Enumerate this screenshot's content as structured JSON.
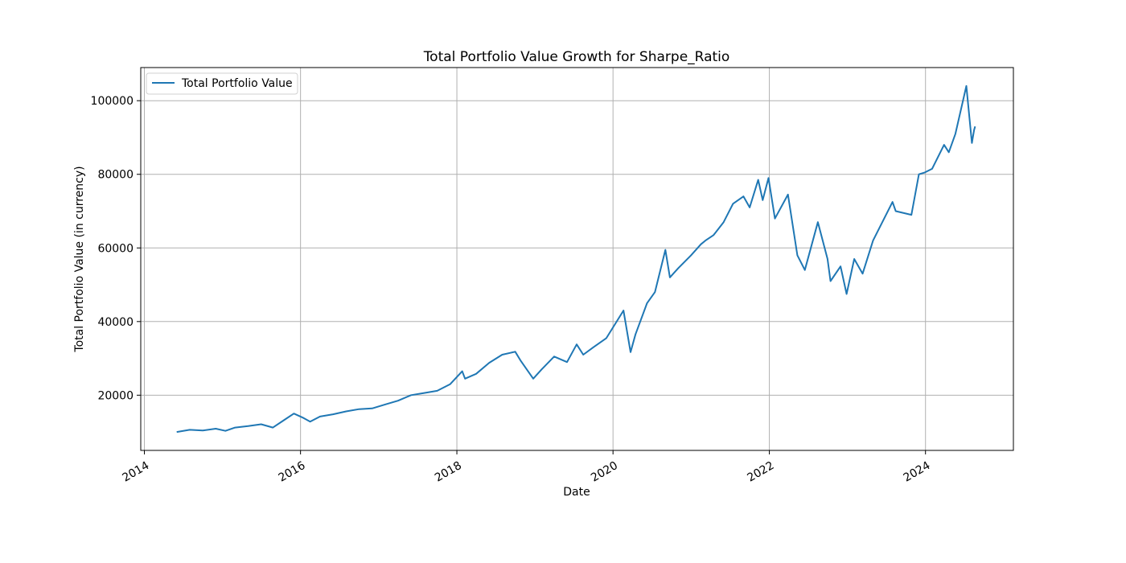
{
  "chart_data": {
    "type": "line",
    "title": "Total Portfolio Value Growth for Sharpe_Ratio",
    "xlabel": "Date",
    "ylabel": "Total Portfolio Value (in currency)",
    "xlim": [
      "2013-12-15",
      "2025-02-15"
    ],
    "ylim": [
      5000,
      109000
    ],
    "x_ticks": [
      "2014",
      "2016",
      "2018",
      "2020",
      "2022",
      "2024"
    ],
    "x_tick_dates": [
      "2014-01-01",
      "2016-01-01",
      "2018-01-01",
      "2020-01-01",
      "2022-01-01",
      "2024-01-01"
    ],
    "y_ticks": [
      20000,
      40000,
      60000,
      80000,
      100000
    ],
    "grid": true,
    "legend_position": "upper-left",
    "line_color": "#1f77b4",
    "series": [
      {
        "name": "Total Portfolio Value",
        "x": [
          "2014-06-01",
          "2014-08-01",
          "2014-10-01",
          "2014-12-01",
          "2015-01-15",
          "2015-03-01",
          "2015-05-01",
          "2015-07-01",
          "2015-08-25",
          "2015-10-15",
          "2015-12-01",
          "2016-01-15",
          "2016-02-15",
          "2016-04-01",
          "2016-06-01",
          "2016-08-01",
          "2016-10-01",
          "2016-12-01",
          "2017-02-01",
          "2017-04-01",
          "2017-06-01",
          "2017-08-01",
          "2017-10-01",
          "2017-12-01",
          "2018-01-26",
          "2018-02-08",
          "2018-04-01",
          "2018-06-01",
          "2018-08-01",
          "2018-10-01",
          "2018-10-25",
          "2018-12-24",
          "2019-02-01",
          "2019-04-01",
          "2019-05-31",
          "2019-07-15",
          "2019-08-15",
          "2019-10-01",
          "2019-12-01",
          "2020-02-19",
          "2020-03-23",
          "2020-04-15",
          "2020-06-08",
          "2020-07-15",
          "2020-09-02",
          "2020-09-23",
          "2020-11-01",
          "2020-12-31",
          "2021-02-15",
          "2021-03-08",
          "2021-04-15",
          "2021-06-01",
          "2021-07-15",
          "2021-09-02",
          "2021-10-01",
          "2021-11-10",
          "2021-12-01",
          "2021-12-28",
          "2022-01-27",
          "2022-03-29",
          "2022-05-12",
          "2022-06-16",
          "2022-08-16",
          "2022-09-30",
          "2022-10-14",
          "2022-11-30",
          "2022-12-28",
          "2023-02-02",
          "2023-03-13",
          "2023-05-01",
          "2023-07-31",
          "2023-08-15",
          "2023-10-27",
          "2023-12-01",
          "2023-12-29",
          "2024-02-01",
          "2024-03-28",
          "2024-04-19",
          "2024-05-20",
          "2024-07-10",
          "2024-08-05",
          "2024-08-15",
          "2024-08-20"
        ],
        "values": [
          10000,
          10600,
          10400,
          10900,
          10300,
          11200,
          11600,
          12100,
          11200,
          13200,
          15000,
          13800,
          12800,
          14200,
          14800,
          15600,
          16200,
          16400,
          17500,
          18500,
          20000,
          20600,
          21200,
          23000,
          26500,
          24500,
          25800,
          28800,
          31000,
          31800,
          29500,
          24500,
          27000,
          30500,
          29000,
          33800,
          31000,
          33000,
          35500,
          43000,
          31700,
          36500,
          45000,
          48000,
          59500,
          52000,
          54500,
          58000,
          61000,
          62000,
          63500,
          67000,
          72000,
          74000,
          71000,
          78500,
          73000,
          79000,
          68000,
          74500,
          58000,
          54000,
          67000,
          57000,
          51000,
          55000,
          47500,
          57000,
          53000,
          62000,
          72500,
          70000,
          69000,
          80000,
          80500,
          81500,
          88000,
          86000,
          91000,
          104000,
          88500,
          92000,
          93000
        ]
      }
    ]
  }
}
